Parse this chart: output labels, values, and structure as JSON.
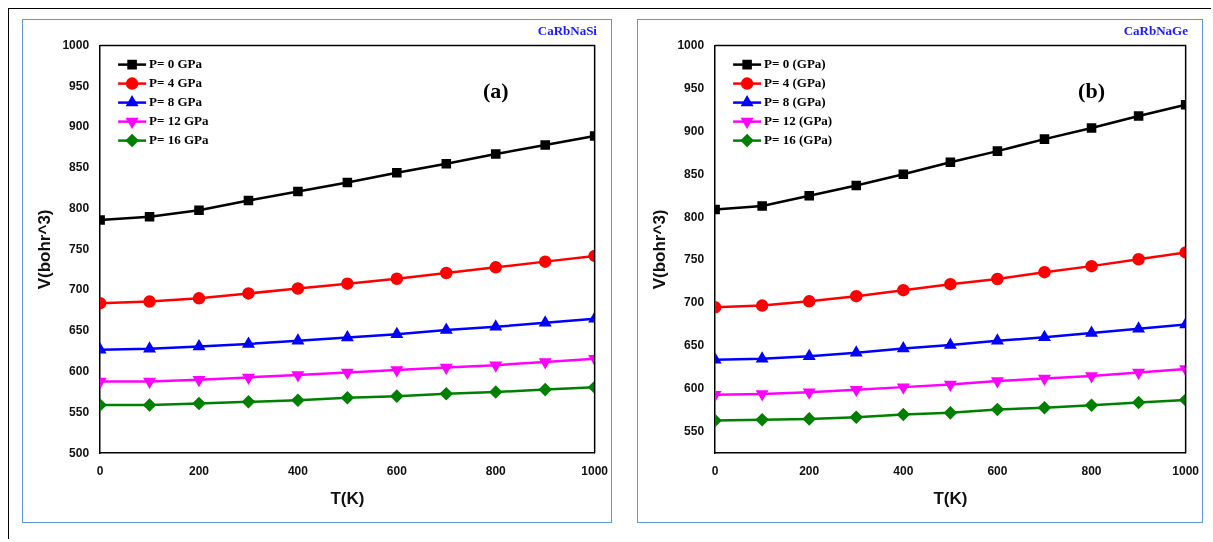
{
  "chart_data": [
    {
      "type": "line",
      "title": "CaRbNaSi",
      "xlabel": "T(K)",
      "ylabel": "V(bohr^3)",
      "annotations": [
        "(a)"
      ],
      "x": [
        0,
        100,
        200,
        300,
        400,
        500,
        600,
        700,
        800,
        900,
        1000
      ],
      "series": [
        {
          "name": "P= 0 GPa",
          "color": "#000000",
          "marker": "square",
          "values": [
            786,
            790,
            798,
            810,
            821,
            832,
            844,
            855,
            867,
            878,
            889
          ]
        },
        {
          "name": "P= 4 GPa",
          "color": "#ff0000",
          "marker": "circle",
          "values": [
            684,
            686,
            690,
            696,
            702,
            708,
            714,
            721,
            728,
            735,
            742
          ]
        },
        {
          "name": "P= 8 GPa",
          "color": "#0000ff",
          "marker": "triangle",
          "values": [
            627,
            628,
            631,
            634,
            638,
            642,
            646,
            651,
            655,
            660,
            665
          ]
        },
        {
          "name": "P= 12 GPa",
          "color": "#ff00ff",
          "marker": "triangle-down",
          "values": [
            588,
            588,
            590,
            593,
            596,
            599,
            602,
            605,
            608,
            612,
            616
          ]
        },
        {
          "name": "P= 16 GPa",
          "color": "#008000",
          "marker": "diamond",
          "values": [
            559,
            559,
            561,
            563,
            565,
            568,
            570,
            573,
            575,
            578,
            581
          ]
        }
      ],
      "xlim": [
        0,
        1000
      ],
      "xticks": [
        0,
        200,
        400,
        600,
        800,
        1000
      ],
      "ylim": [
        500,
        1000
      ],
      "yticks": [
        500,
        550,
        600,
        650,
        700,
        750,
        800,
        850,
        900,
        950,
        1000
      ],
      "grid": false,
      "legend": "top left",
      "line_style": "solid"
    },
    {
      "type": "line",
      "title": "CaRbNaGe",
      "xlabel": "T(K)",
      "ylabel": "V(bohr^3)",
      "annotations": [
        "(b)"
      ],
      "x": [
        0,
        100,
        200,
        300,
        400,
        500,
        600,
        700,
        800,
        900,
        1000
      ],
      "series": [
        {
          "name": "P= 0 (GPa)",
          "color": "#000000",
          "marker": "square",
          "values": [
            809,
            813,
            825,
            837,
            850,
            864,
            877,
            891,
            904,
            918,
            931
          ]
        },
        {
          "name": "P= 4 (GPa)",
          "color": "#ff0000",
          "marker": "circle",
          "values": [
            695,
            697,
            702,
            708,
            715,
            722,
            728,
            736,
            743,
            751,
            759
          ]
        },
        {
          "name": "P= 8 (GPa)",
          "color": "#0000ff",
          "marker": "triangle",
          "values": [
            634,
            635,
            638,
            642,
            647,
            651,
            656,
            660,
            665,
            670,
            675
          ]
        },
        {
          "name": "P= 12 (GPa)",
          "color": "#ff00ff",
          "marker": "triangle-down",
          "values": [
            593,
            594,
            596,
            599,
            602,
            605,
            609,
            612,
            615,
            619,
            623
          ]
        },
        {
          "name": "P= 16 (GPa)",
          "color": "#008000",
          "marker": "diamond",
          "values": [
            563,
            564,
            565,
            567,
            570,
            572,
            576,
            578,
            581,
            584,
            587
          ]
        }
      ],
      "xlim": [
        0,
        1000
      ],
      "xticks": [
        0,
        200,
        400,
        600,
        800,
        1000
      ],
      "ylim": [
        525,
        1000
      ],
      "yticks": [
        550,
        600,
        650,
        700,
        750,
        800,
        850,
        900,
        950,
        1000
      ],
      "grid": false,
      "legend": "top left",
      "line_style": "solid"
    }
  ]
}
